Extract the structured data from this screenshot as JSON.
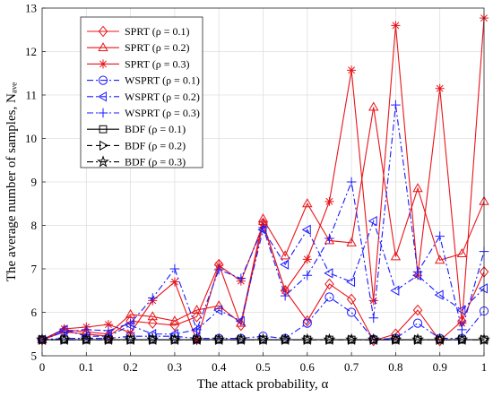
{
  "chart_data": {
    "type": "line",
    "xlabel": "The attack probability, α",
    "ylabel": "The average number of samples, Nₐᵥₑ",
    "xlim": [
      0,
      1
    ],
    "ylim": [
      5,
      13
    ],
    "xticks": [
      "0",
      "0.1",
      "0.2",
      "0.3",
      "0.4",
      "0.5",
      "0.6",
      "0.7",
      "0.8",
      "0.9",
      "1"
    ],
    "yticks": [
      "5",
      "6",
      "7",
      "8",
      "9",
      "10",
      "11",
      "12",
      "13"
    ],
    "grid": true,
    "legend_position": "top-left",
    "x": [
      0,
      0.05,
      0.1,
      0.15,
      0.2,
      0.25,
      0.3,
      0.35,
      0.4,
      0.45,
      0.5,
      0.55,
      0.6,
      0.65,
      0.7,
      0.75,
      0.8,
      0.85,
      0.9,
      0.95,
      1
    ],
    "series": [
      {
        "name": "SPRT (ρ = 0.1)",
        "color": "#e8141a",
        "dash": "solid",
        "marker": "diamond",
        "values": [
          5.37,
          5.55,
          5.5,
          5.45,
          5.8,
          5.75,
          5.7,
          5.9,
          7.1,
          5.7,
          8.05,
          6.5,
          5.8,
          6.65,
          6.3,
          5.35,
          5.5,
          6.05,
          5.35,
          5.8,
          6.93
        ]
      },
      {
        "name": "SPRT (ρ = 0.2)",
        "color": "#e8141a",
        "dash": "solid",
        "marker": "triangle-up",
        "values": [
          5.37,
          5.6,
          5.55,
          5.5,
          5.95,
          5.9,
          5.8,
          6.05,
          6.15,
          5.75,
          8.15,
          7.3,
          8.5,
          7.65,
          7.6,
          10.72,
          7.28,
          8.85,
          7.2,
          7.35,
          8.55
        ]
      },
      {
        "name": "SPRT (ρ = 0.3)",
        "color": "#e8141a",
        "dash": "solid",
        "marker": "asterisk",
        "values": [
          5.37,
          5.62,
          5.66,
          5.72,
          5.53,
          6.27,
          6.7,
          5.35,
          7.08,
          6.72,
          8.02,
          6.5,
          7.22,
          8.55,
          11.57,
          6.27,
          12.6,
          6.85,
          11.15,
          5.75,
          12.77
        ]
      },
      {
        "name": "WSPRT (ρ = 0.1)",
        "color": "#1a1aff",
        "dash": "dashdot",
        "marker": "circle",
        "values": [
          5.37,
          5.4,
          5.4,
          5.4,
          5.45,
          5.45,
          5.45,
          5.4,
          5.4,
          5.4,
          5.45,
          5.4,
          5.75,
          6.35,
          6.0,
          5.38,
          5.4,
          5.75,
          5.4,
          5.4,
          6.03
        ]
      },
      {
        "name": "WSPRT (ρ = 0.2)",
        "color": "#1a1aff",
        "dash": "dashdot",
        "marker": "triangle-left",
        "values": [
          5.37,
          5.6,
          5.45,
          5.45,
          5.7,
          5.5,
          5.5,
          5.6,
          6.05,
          5.8,
          7.9,
          7.1,
          7.9,
          6.9,
          6.7,
          8.1,
          6.5,
          6.85,
          6.4,
          6.05,
          6.55
        ]
      },
      {
        "name": "WSPRT (ρ = 0.3)",
        "color": "#1a1aff",
        "dash": "dashdot",
        "marker": "plus",
        "values": [
          5.37,
          5.55,
          5.6,
          5.58,
          5.75,
          6.33,
          7.0,
          5.6,
          6.98,
          6.78,
          7.95,
          6.38,
          6.85,
          7.7,
          9.0,
          5.87,
          10.77,
          6.93,
          7.75,
          5.6,
          7.4
        ]
      },
      {
        "name": "BDF (ρ = 0.1)",
        "color": "#000000",
        "dash": "solid",
        "marker": "square",
        "values": [
          5.37,
          5.37,
          5.37,
          5.37,
          5.37,
          5.37,
          5.37,
          5.37,
          5.37,
          5.37,
          5.37,
          5.37,
          5.37,
          5.37,
          5.37,
          5.37,
          5.37,
          5.37,
          5.37,
          5.37,
          5.37
        ]
      },
      {
        "name": "BDF (ρ = 0.2)",
        "color": "#000000",
        "dash": "dashed",
        "marker": "triangle-right",
        "values": [
          5.37,
          5.37,
          5.37,
          5.37,
          5.37,
          5.37,
          5.37,
          5.37,
          5.37,
          5.37,
          5.37,
          5.37,
          5.37,
          5.37,
          5.37,
          5.37,
          5.37,
          5.37,
          5.37,
          5.37,
          5.37
        ]
      },
      {
        "name": "BDF (ρ = 0.3)",
        "color": "#000000",
        "dash": "dashdot",
        "marker": "pentagram",
        "values": [
          5.37,
          5.37,
          5.37,
          5.37,
          5.37,
          5.37,
          5.37,
          5.37,
          5.37,
          5.37,
          5.37,
          5.37,
          5.37,
          5.37,
          5.37,
          5.37,
          5.37,
          5.37,
          5.37,
          5.37,
          5.37
        ]
      }
    ]
  }
}
